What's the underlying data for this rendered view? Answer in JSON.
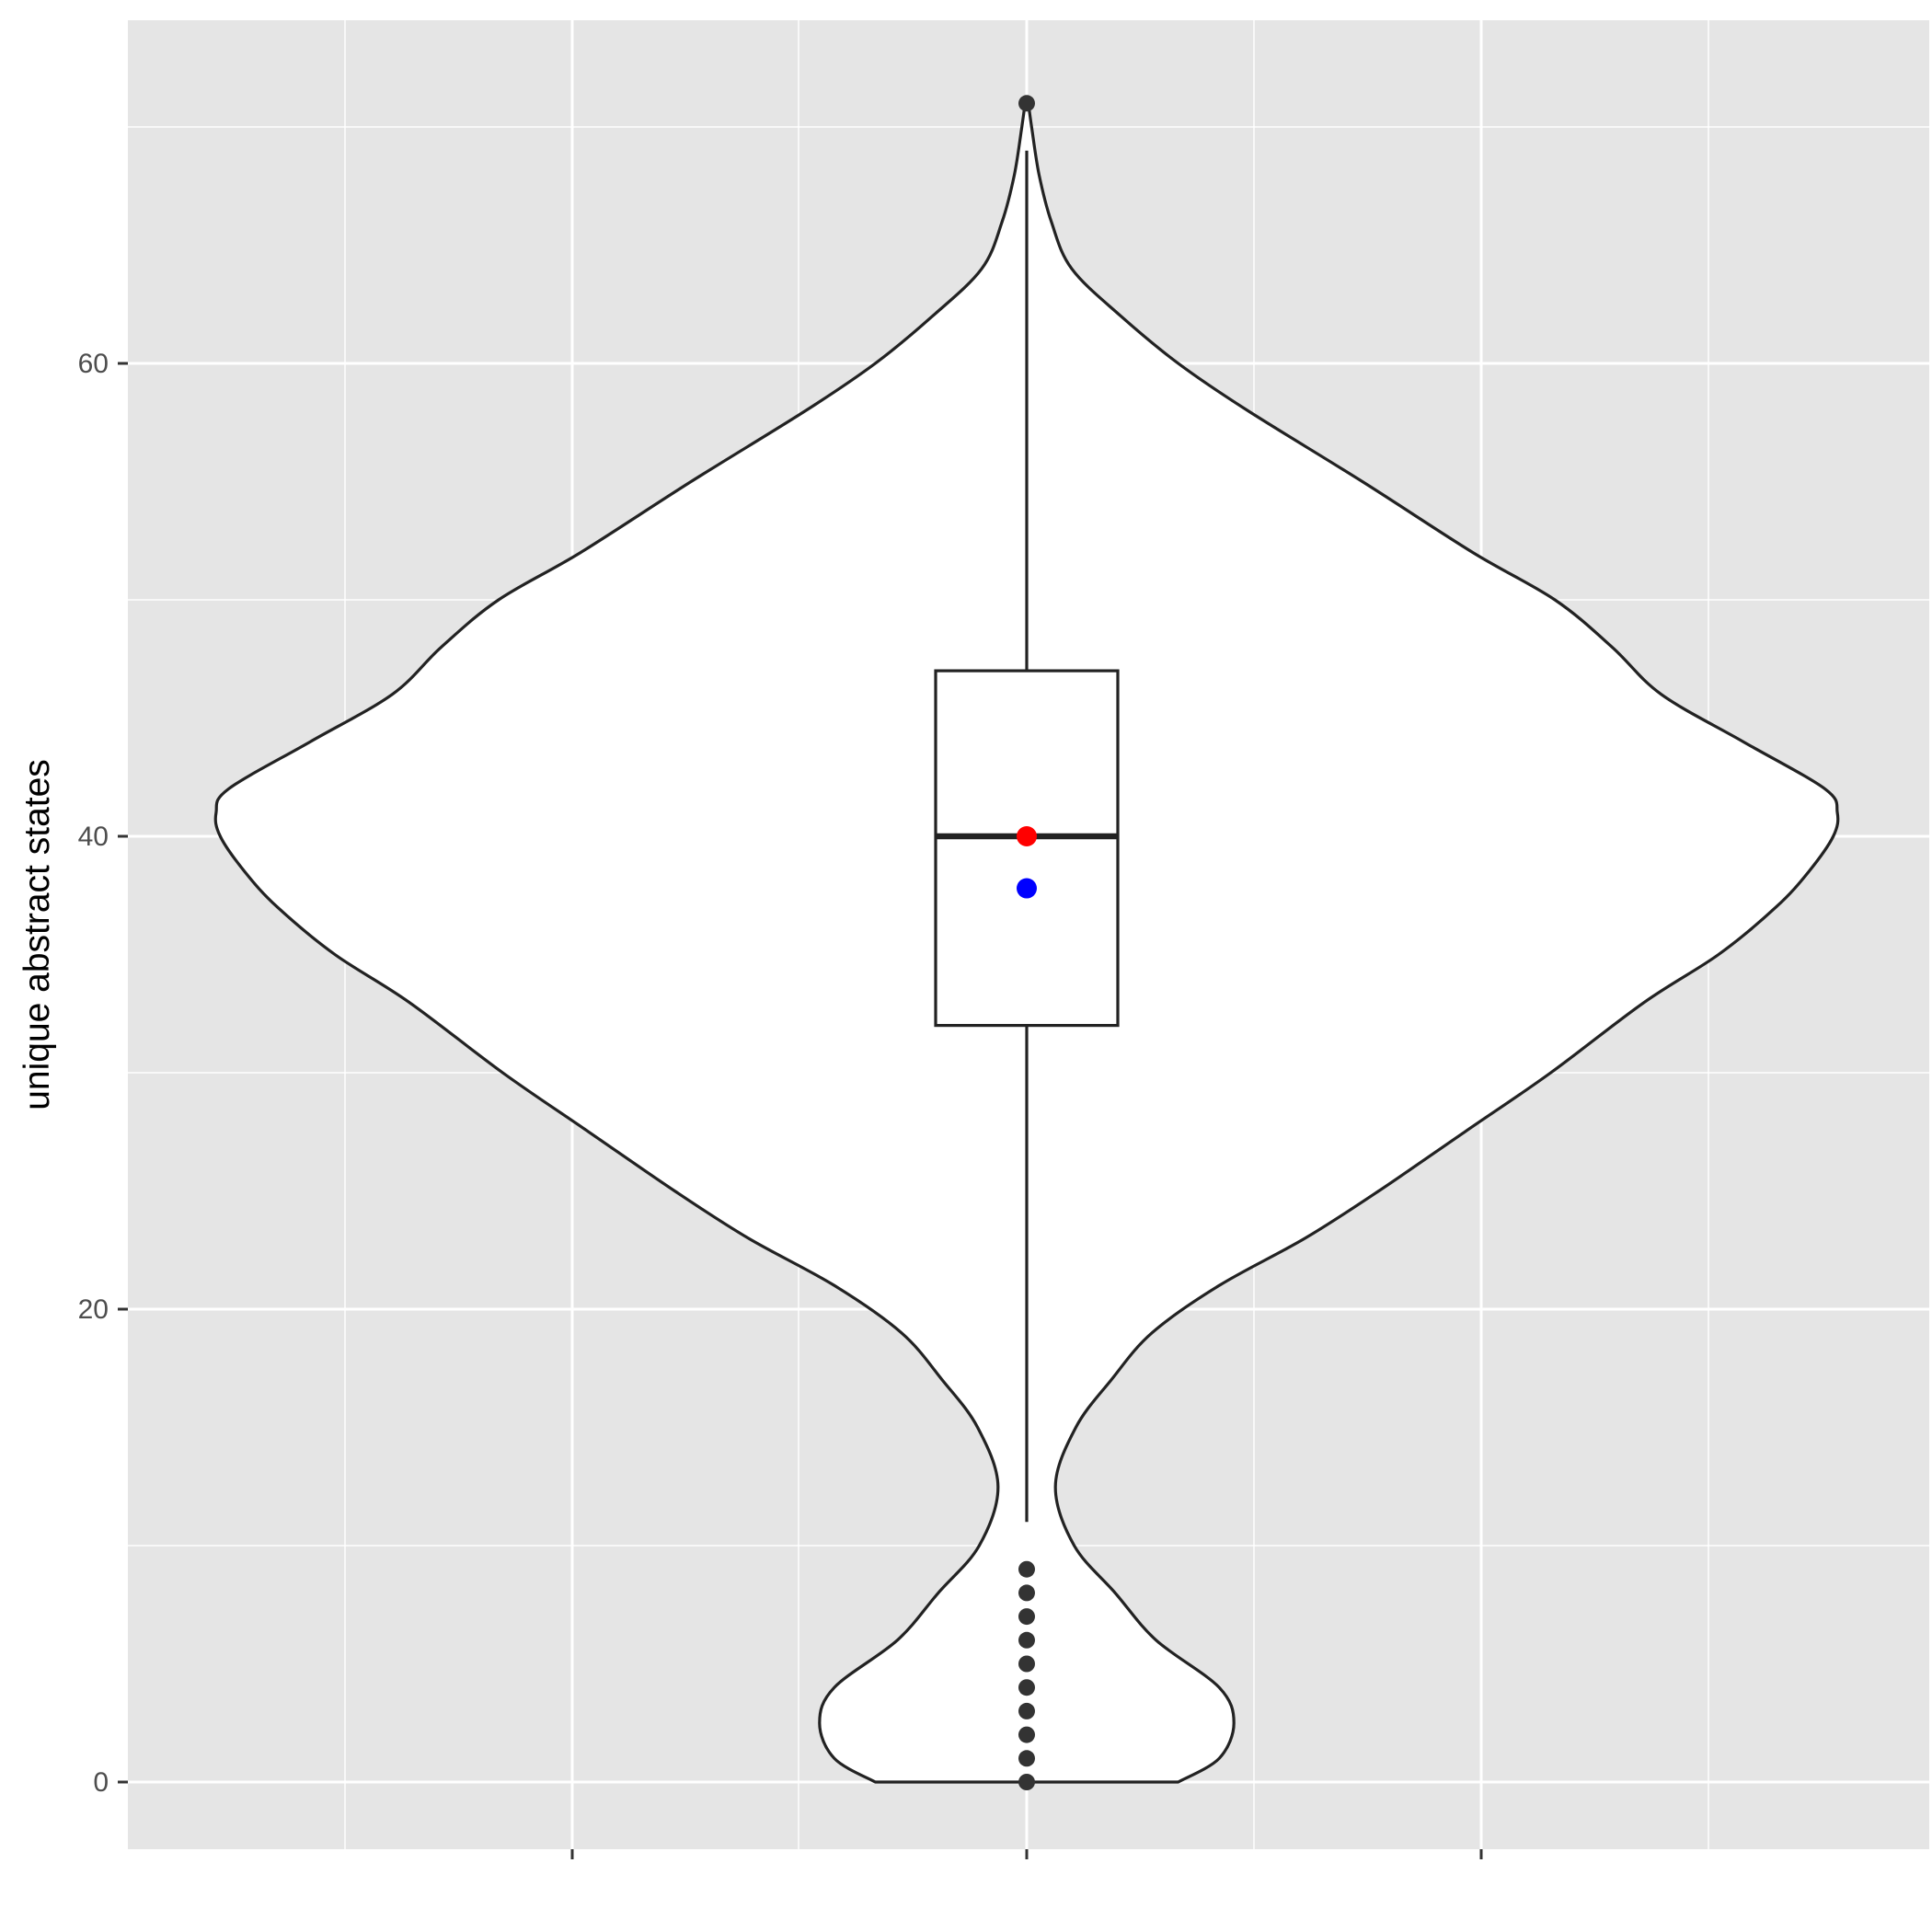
{
  "chart_data": {
    "type": "violin",
    "title": "",
    "xlabel": "",
    "ylabel": "unique abstract states",
    "ylim": [
      -3.5,
      74.5
    ],
    "y_ticks": [
      0,
      20,
      40,
      60
    ],
    "y_tick_labels": [
      "0",
      "20",
      "40",
      "60"
    ],
    "grid": true,
    "legend": "none",
    "colors": {
      "panel": "#e5e5e5",
      "grid": "#ffffff",
      "violin_fill": "#ffffff",
      "outline": "#222222",
      "median_point": "#ff0000",
      "mean_point": "#0000ff",
      "outliers": "#333333"
    },
    "boxplot": {
      "q1": 32,
      "median": 40,
      "q3": 47,
      "whisker_low": 11,
      "whisker_high": 69
    },
    "median_point": 40,
    "mean_point": 37.8,
    "outliers": [
      0,
      1,
      2,
      3,
      4,
      5,
      6,
      7,
      8,
      9,
      71
    ],
    "density": {
      "note_units": "half-width relative to max",
      "y": [
        0,
        1,
        2.5,
        4,
        6,
        8,
        10,
        12.5,
        15,
        17,
        19,
        21,
        23,
        25,
        27.5,
        30,
        33,
        35,
        37,
        38.5,
        40,
        41,
        42,
        44,
        46,
        48,
        50,
        52,
        55,
        58,
        60,
        62,
        64,
        66,
        68,
        70,
        71
      ],
      "w": [
        0.185,
        0.235,
        0.253,
        0.235,
        0.158,
        0.108,
        0.058,
        0.035,
        0.06,
        0.103,
        0.153,
        0.235,
        0.34,
        0.43,
        0.535,
        0.64,
        0.755,
        0.845,
        0.915,
        0.955,
        0.985,
        0.99,
        0.975,
        0.875,
        0.775,
        0.715,
        0.645,
        0.545,
        0.41,
        0.27,
        0.185,
        0.115,
        0.055,
        0.03,
        0.015,
        0.006,
        0.002
      ]
    }
  }
}
